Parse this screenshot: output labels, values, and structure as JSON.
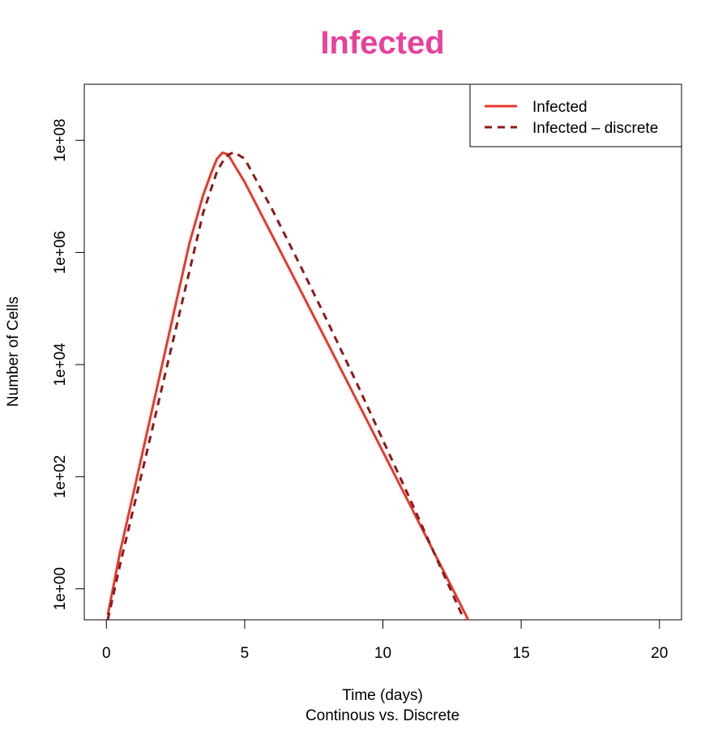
{
  "chart_data": {
    "type": "line",
    "title": "Infected",
    "title_color": "#e8419a",
    "xlabel": "Time (days)",
    "subtitle": "Continous vs. Discrete",
    "ylabel": "Number of Cells",
    "y_scale": "log10",
    "xlim": [
      -0.8,
      20.8
    ],
    "ylim": [
      0.28,
      1000000000.0
    ],
    "x_ticks": [
      0,
      5,
      10,
      15,
      20
    ],
    "y_ticks": [
      1,
      100,
      10000,
      1000000,
      100000000
    ],
    "y_tick_labels": [
      "1e+00",
      "1e+02",
      "1e+04",
      "1e+06",
      "1e+08"
    ],
    "grid": false,
    "legend_position": "top-right",
    "series": [
      {
        "name": "Infected",
        "color": "#e8392d",
        "line_style": "solid",
        "points": [
          [
            0.05,
            0.34
          ],
          [
            0.5,
            4.7
          ],
          [
            1.0,
            57
          ],
          [
            1.5,
            720
          ],
          [
            2.0,
            9100
          ],
          [
            2.5,
            115000
          ],
          [
            3.0,
            1450000
          ],
          [
            3.5,
            10500000
          ],
          [
            3.8,
            27000000
          ],
          [
            4.0,
            47000000
          ],
          [
            4.2,
            60000000
          ],
          [
            4.4,
            56000000
          ],
          [
            4.6,
            38000000
          ],
          [
            5.0,
            18000000
          ],
          [
            6.0,
            2000000
          ],
          [
            7.0,
            220000
          ],
          [
            8.0,
            24000
          ],
          [
            9.0,
            2600
          ],
          [
            10.0,
            280
          ],
          [
            11.0,
            30
          ],
          [
            12.0,
            3.2
          ],
          [
            13.0,
            0.34
          ],
          [
            14.05,
            0.028
          ]
        ]
      },
      {
        "name": "Infected – discrete",
        "color": "#8b1a1a",
        "line_style": "dashed",
        "points": [
          [
            0.05,
            0.28
          ],
          [
            0.5,
            2.8
          ],
          [
            1.0,
            30
          ],
          [
            1.5,
            330
          ],
          [
            2.0,
            3700
          ],
          [
            2.5,
            41000
          ],
          [
            3.0,
            460000
          ],
          [
            3.5,
            5100000
          ],
          [
            4.0,
            28000000
          ],
          [
            4.3,
            50000000
          ],
          [
            4.6,
            62000000
          ],
          [
            5.0,
            47000000
          ],
          [
            6.0,
            5800000
          ],
          [
            7.0,
            600000
          ],
          [
            8.0,
            58000
          ],
          [
            9.0,
            5300
          ],
          [
            10.0,
            450
          ],
          [
            11.0,
            38
          ],
          [
            12.0,
            3.0
          ],
          [
            13.0,
            0.24
          ],
          [
            13.8,
            0.028
          ]
        ]
      }
    ]
  }
}
